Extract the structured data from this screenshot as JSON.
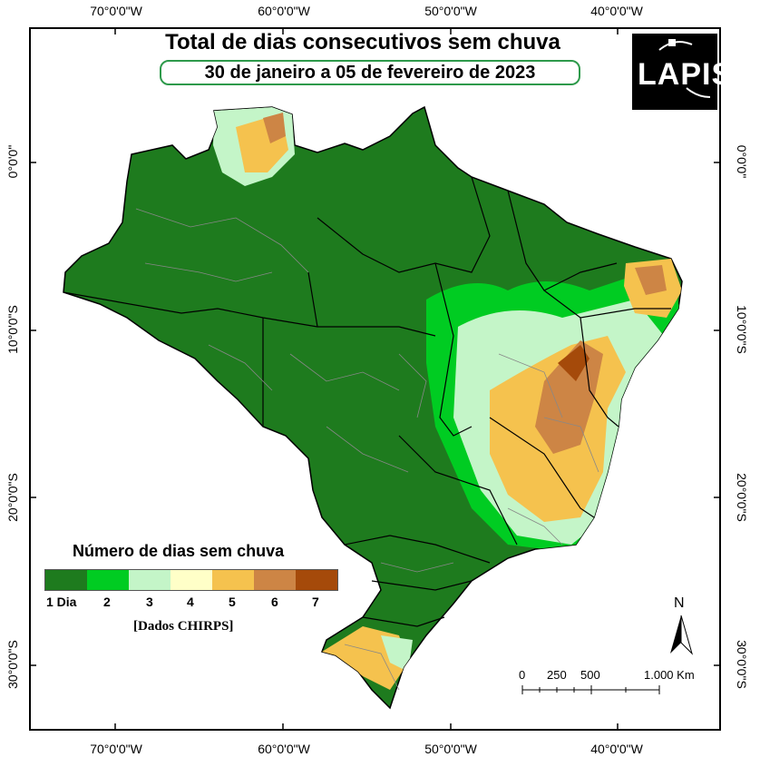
{
  "title": "Total de dias consecutivos sem chuva",
  "subtitle": "30 de janeiro a 05 de fevereiro de 2023",
  "logo": {
    "text": "LAPIS"
  },
  "axes": {
    "longitude_labels": [
      "70°0'0\"W",
      "60°0'0\"W",
      "50°0'0\"W",
      "40°0'0\"W"
    ],
    "latitude_labels": [
      "0°0'0\"",
      "10°0'0\"S",
      "20°0'0\"S",
      "30°0'0\"S"
    ]
  },
  "legend": {
    "title": "Número de dias sem chuva",
    "items": [
      {
        "label": "1 Dia",
        "color": "#1e7b1e"
      },
      {
        "label": "2",
        "color": "#00cc22"
      },
      {
        "label": "3",
        "color": "#c4f5c8"
      },
      {
        "label": "4",
        "color": "#ffffc8"
      },
      {
        "label": "5",
        "color": "#f5c24e"
      },
      {
        "label": "6",
        "color": "#cd8545"
      },
      {
        "label": "7",
        "color": "#a54a0a"
      }
    ],
    "source": "[Dados CHIRPS]"
  },
  "scale_bar": {
    "labels": [
      "0",
      "250",
      "500",
      "1.000 Km"
    ]
  },
  "north_arrow": {
    "label": "N"
  }
}
